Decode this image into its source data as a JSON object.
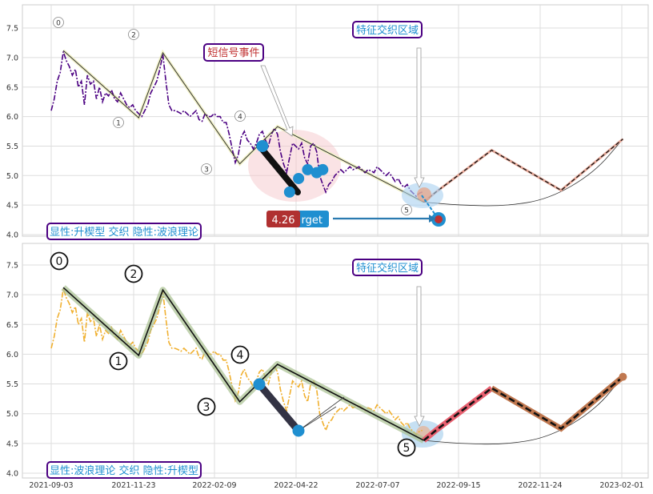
{
  "chart_data": [
    {
      "type": "line",
      "panel": "top",
      "x_ticks": [
        "2021-09-03",
        "2021-11-23",
        "2022-02-09",
        "2022-04-22",
        "2022-07-07",
        "2022-09-15",
        "2022-11-24",
        "2023-02-01"
      ],
      "y_ticks": [
        4.0,
        4.5,
        5.0,
        5.5,
        6.0,
        6.5,
        7.0,
        7.5
      ],
      "ylim": [
        3.95,
        7.85
      ],
      "grid": true,
      "colors": {
        "price": "#4b0082",
        "wave": "#000000",
        "wave_fill": "#f5f5d0",
        "projection": "#000000",
        "projection_fill": "#e8a090",
        "ellipse": "#f0b8c0",
        "blue_dot": "#1f8fd0",
        "target_dot": "#c03030"
      },
      "price": [
        [
          0,
          6.1
        ],
        [
          2,
          6.3
        ],
        [
          4,
          6.6
        ],
        [
          6,
          6.75
        ],
        [
          8,
          7.1
        ],
        [
          10,
          6.95
        ],
        [
          12,
          6.85
        ],
        [
          14,
          6.7
        ],
        [
          16,
          6.8
        ],
        [
          18,
          6.5
        ],
        [
          20,
          6.6
        ],
        [
          22,
          6.2
        ],
        [
          24,
          6.7
        ],
        [
          26,
          6.55
        ],
        [
          28,
          6.6
        ],
        [
          30,
          6.3
        ],
        [
          32,
          6.5
        ],
        [
          34,
          6.25
        ],
        [
          36,
          6.4
        ],
        [
          38,
          6.35
        ],
        [
          40,
          6.45
        ],
        [
          42,
          6.3
        ],
        [
          44,
          6.25
        ],
        [
          46,
          6.4
        ],
        [
          48,
          6.3
        ],
        [
          50,
          6.2
        ],
        [
          52,
          6.15
        ],
        [
          54,
          6.2
        ],
        [
          56,
          6.1
        ],
        [
          58,
          6.05
        ],
        [
          60,
          6.0
        ],
        [
          62,
          6.1
        ],
        [
          64,
          6.2
        ],
        [
          66,
          6.4
        ],
        [
          68,
          6.5
        ],
        [
          70,
          6.6
        ],
        [
          72,
          6.8
        ],
        [
          74,
          7.05
        ],
        [
          76,
          6.6
        ],
        [
          78,
          6.2
        ],
        [
          80,
          6.1
        ],
        [
          82,
          6.1
        ],
        [
          84,
          6.08
        ],
        [
          86,
          6.05
        ],
        [
          88,
          6.1
        ],
        [
          90,
          6.05
        ],
        [
          92,
          6.0
        ],
        [
          94,
          6.05
        ],
        [
          96,
          6.1
        ],
        [
          98,
          5.95
        ],
        [
          100,
          5.92
        ],
        [
          102,
          6.05
        ],
        [
          104,
          6.0
        ],
        [
          106,
          6.0
        ],
        [
          108,
          6.05
        ],
        [
          110,
          6.0
        ],
        [
          112,
          6.0
        ],
        [
          114,
          5.9
        ],
        [
          116,
          5.9
        ],
        [
          118,
          5.7
        ],
        [
          120,
          5.45
        ],
        [
          122,
          5.22
        ],
        [
          124,
          5.35
        ],
        [
          126,
          5.65
        ],
        [
          128,
          5.75
        ],
        [
          130,
          5.6
        ],
        [
          132,
          5.55
        ],
        [
          134,
          5.45
        ],
        [
          136,
          5.55
        ],
        [
          138,
          5.7
        ],
        [
          140,
          5.75
        ],
        [
          142,
          5.6
        ],
        [
          144,
          5.5
        ],
        [
          146,
          5.7
        ],
        [
          148,
          5.8
        ],
        [
          150,
          5.7
        ],
        [
          152,
          5.4
        ],
        [
          154,
          5.2
        ],
        [
          156,
          5.05
        ],
        [
          158,
          5.3
        ],
        [
          160,
          5.55
        ],
        [
          162,
          5.5
        ],
        [
          164,
          5.45
        ],
        [
          166,
          5.55
        ],
        [
          168,
          5.3
        ],
        [
          170,
          5.2
        ],
        [
          172,
          5.5
        ],
        [
          174,
          5.55
        ],
        [
          176,
          5.4
        ],
        [
          178,
          5.0
        ],
        [
          180,
          4.85
        ],
        [
          182,
          4.72
        ],
        [
          184,
          4.85
        ],
        [
          186,
          4.9
        ],
        [
          188,
          5.0
        ],
        [
          190,
          5.05
        ],
        [
          192,
          5.1
        ],
        [
          194,
          5.05
        ],
        [
          196,
          5.1
        ],
        [
          198,
          5.15
        ],
        [
          200,
          5.1
        ],
        [
          202,
          5.12
        ],
        [
          204,
          5.15
        ],
        [
          206,
          5.1
        ],
        [
          208,
          5.05
        ],
        [
          210,
          5.1
        ],
        [
          212,
          5.08
        ],
        [
          214,
          5.05
        ],
        [
          216,
          5.15
        ],
        [
          218,
          5.1
        ],
        [
          220,
          5.05
        ],
        [
          222,
          5.0
        ],
        [
          224,
          5.05
        ],
        [
          226,
          4.98
        ],
        [
          228,
          4.9
        ],
        [
          230,
          4.95
        ],
        [
          232,
          4.85
        ],
        [
          234,
          4.8
        ],
        [
          236,
          4.85
        ],
        [
          238,
          4.75
        ],
        [
          240,
          4.7
        ],
        [
          242,
          4.65
        ],
        [
          244,
          4.7
        ],
        [
          246,
          4.72
        ]
      ],
      "wave": [
        [
          8,
          7.12
        ],
        [
          58,
          5.98
        ],
        [
          74,
          7.08
        ],
        [
          125,
          5.2
        ],
        [
          150,
          5.83
        ],
        [
          247,
          4.55
        ]
      ],
      "wave_labels": [
        "0",
        "1",
        "2",
        "3",
        "4",
        "5"
      ],
      "projection": [
        [
          247,
          4.55
        ],
        [
          255,
          4.72
        ],
        [
          292,
          5.43
        ],
        [
          338,
          4.75
        ],
        [
          379,
          5.62
        ]
      ],
      "arc": [
        [
          247,
          4.55
        ],
        [
          270,
          4.5
        ],
        [
          300,
          4.48
        ],
        [
          330,
          4.6
        ],
        [
          360,
          5.05
        ],
        [
          379,
          5.62
        ]
      ],
      "blue_dots": [
        [
          140,
          5.5
        ],
        [
          158,
          4.72
        ],
        [
          164,
          4.95
        ],
        [
          170,
          5.1
        ],
        [
          176,
          5.05
        ],
        [
          180,
          5.1
        ]
      ],
      "target_dot": [
        257,
        4.26
      ],
      "target_value": "4.26",
      "target_tag": "rget",
      "annotations": {
        "short_signal": "短信号事件",
        "feature_zone": "特征交织区域",
        "bottom_label": "显性:升楔型 交织 隐性:波浪理论"
      }
    },
    {
      "type": "line",
      "panel": "bottom",
      "x_ticks": [
        "2021-09-03",
        "2021-11-23",
        "2022-02-09",
        "2022-04-22",
        "2022-07-07",
        "2022-09-15",
        "2022-11-24",
        "2023-02-01"
      ],
      "y_ticks": [
        4.0,
        4.5,
        5.0,
        5.5,
        6.0,
        6.5,
        7.0,
        7.5
      ],
      "ylim": [
        3.9,
        7.9
      ],
      "grid": true,
      "colors": {
        "price": "#f0b030",
        "wave": "#000000",
        "wave_fill": "#a8c090",
        "projection_up": "#e05060",
        "projection_down": "#c07050",
        "ellipse": "#b8d8f0",
        "blue_dot": "#1f8fd0"
      },
      "wave_labels": [
        "0",
        "1",
        "2",
        "3",
        "4",
        "5"
      ],
      "annotations": {
        "feature_zone": "特征交织区域",
        "bottom_label": "显性:波浪理论 交织 隐性:升楔型"
      }
    }
  ]
}
